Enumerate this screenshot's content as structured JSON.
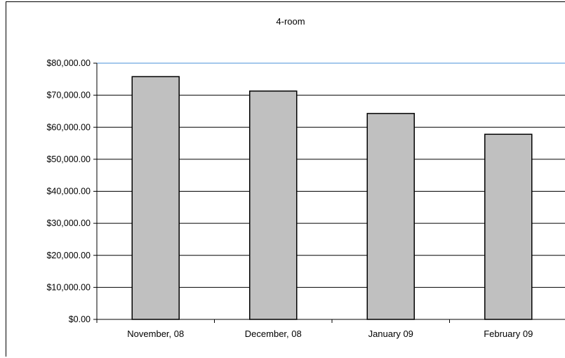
{
  "chart_data": {
    "type": "bar",
    "title": "4-room",
    "xlabel": "",
    "ylabel": "",
    "categories": [
      "November, 08",
      "December, 08",
      "January 09",
      "February 09"
    ],
    "values": [
      75800,
      71300,
      64300,
      57800
    ],
    "ylim": [
      0,
      80000
    ],
    "yticks": [
      "$0.00",
      "$10,000.00",
      "$20,000.00",
      "$30,000.00",
      "$40,000.00",
      "$50,000.00",
      "$60,000.00",
      "$70,000.00",
      "$80,000.00"
    ],
    "grid": true,
    "legend": "none",
    "colors": {
      "bar_fill": "#c0c0c0",
      "bar_stroke": "#000000",
      "gridline": "#000000",
      "top_gridline": "#4a90d9",
      "axis": "#000000"
    }
  }
}
